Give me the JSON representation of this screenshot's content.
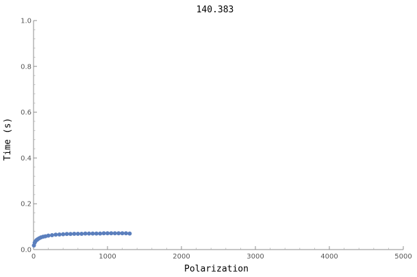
{
  "chart_data": {
    "type": "scatter",
    "title": "140.383",
    "xlabel": "Polarization",
    "ylabel": "Time (s)",
    "xlim": [
      0,
      5000
    ],
    "ylim": [
      0,
      1.0
    ],
    "x_ticks": [
      0,
      1000,
      2000,
      3000,
      4000,
      5000
    ],
    "x_tick_labels": [
      "0",
      "1000",
      "2000",
      "3000",
      "4000",
      "5000"
    ],
    "y_ticks": [
      0.0,
      0.2,
      0.4,
      0.6,
      0.8,
      1.0
    ],
    "y_tick_labels": [
      "0.0",
      "0.2",
      "0.4",
      "0.6",
      "0.8",
      "1.0"
    ],
    "grid": false,
    "marker_color": "#5b7fbd",
    "series": [
      {
        "x": [
          5,
          15,
          25,
          40,
          55,
          75,
          100,
          130,
          160,
          200,
          250,
          300,
          350,
          400,
          450,
          500,
          550,
          600,
          650,
          700,
          750,
          800,
          850,
          900,
          950,
          1000,
          1050,
          1100,
          1150,
          1200,
          1250,
          1300
        ],
        "y": [
          0.018,
          0.03,
          0.036,
          0.041,
          0.045,
          0.049,
          0.053,
          0.056,
          0.058,
          0.061,
          0.063,
          0.065,
          0.066,
          0.067,
          0.068,
          0.068,
          0.069,
          0.069,
          0.069,
          0.07,
          0.07,
          0.07,
          0.07,
          0.07,
          0.071,
          0.071,
          0.071,
          0.071,
          0.071,
          0.071,
          0.071,
          0.07
        ]
      }
    ]
  }
}
